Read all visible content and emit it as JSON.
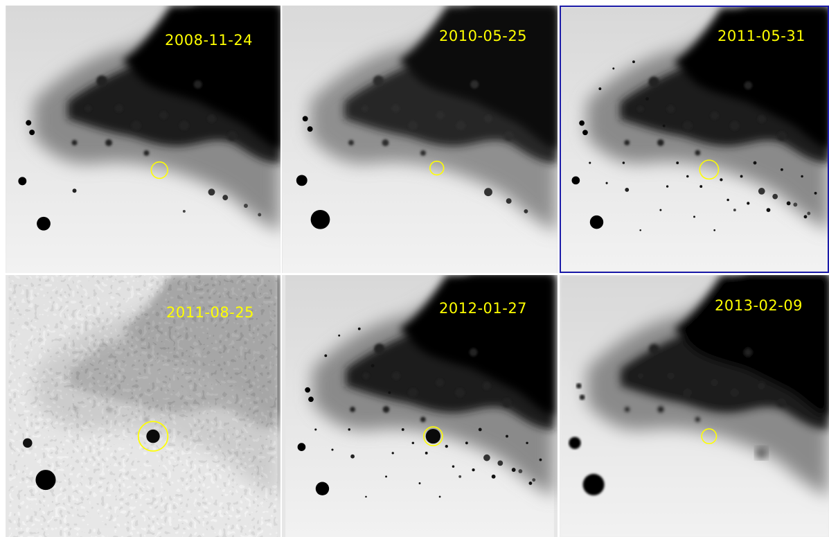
{
  "panels": [
    {
      "date": "2008-11-24",
      "marker": "small",
      "noisy": false,
      "selected": false
    },
    {
      "date": "2010-05-25",
      "marker": "small",
      "noisy": false,
      "selected": false
    },
    {
      "date": "2011-05-31",
      "marker": "small",
      "noisy": false,
      "selected": true
    },
    {
      "date": "2011-08-25",
      "marker": "large-with-source",
      "noisy": true,
      "selected": false
    },
    {
      "date": "2012-01-27",
      "marker": "source",
      "noisy": false,
      "selected": false
    },
    {
      "date": "2013-02-09",
      "marker": "small",
      "noisy": false,
      "selected": false
    }
  ],
  "colors": {
    "label": "#ffff00",
    "marker": "#ffff00",
    "selected_frame": "#1a1aa8",
    "sky": "#e6e6e6",
    "nebula": "#000000"
  }
}
